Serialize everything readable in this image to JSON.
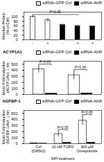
{
  "chart_data": [
    {
      "type": "bar",
      "ylabel": "Relative Protein\n(% of Ctrl)",
      "categories": [
        "-",
        "+",
        "-",
        "+",
        "+"
      ],
      "series": [
        {
          "name": "siRNA-GFP Ctrl",
          "color": "white",
          "values": [
            100,
            85,
            null,
            null,
            null
          ],
          "errors": [
            5,
            8,
            null,
            null,
            null
          ]
        },
        {
          "name": "siRNA-AhR",
          "color": "black",
          "values": [
            null,
            null,
            65,
            60,
            58
          ],
          "errors": [
            null,
            null,
            5,
            6,
            5
          ]
        }
      ],
      "ylim": [
        0,
        120
      ],
      "yticks": [
        0,
        20,
        40,
        60,
        80,
        100
      ],
      "annotations": [
        "P<0.05"
      ],
      "legend": "upper right"
    },
    {
      "type": "bar",
      "title": "ACYP1A1",
      "ylabel": "Mean Fold Induction\n(ACYP1/Act. 1 hr)",
      "categories": [
        null,
        null
      ],
      "series": [
        {
          "name": "siRNA-GFP Ctrl",
          "color": "white",
          "values": [
            420,
            320
          ],
          "errors": [
            60,
            70
          ]
        },
        {
          "name": "siRNA-AhR",
          "color": "black",
          "values": [
            15,
            20
          ],
          "errors": [
            3,
            5
          ]
        }
      ],
      "ylim": [
        0,
        550
      ],
      "yticks": [
        0,
        100,
        200,
        300,
        400,
        500
      ],
      "annotations": [
        "P<0.05",
        "P<0.05"
      ],
      "legend": "upper right"
    },
    {
      "type": "bar",
      "title": "hGFBP-1",
      "ylabel": "Mean Fold Induction\n(hGFBP-1/Act. 1 hr)",
      "xlabel": "SIH treatment",
      "categories": [
        "Ctrl (DMSO)",
        "10 nM TOPO",
        "300 µM Omeprazole"
      ],
      "series": [
        {
          "name": "siRNA-GFP Ctrl",
          "color": "white",
          "values": [
            5,
            160,
            380
          ],
          "errors": [
            1,
            50,
            80
          ]
        },
        {
          "name": "siRNA-AhR",
          "color": "black",
          "values": [
            3,
            15,
            18
          ],
          "errors": [
            1,
            5,
            6
          ]
        }
      ],
      "ylim": [
        0,
        550
      ],
      "yticks": [
        0,
        100,
        200,
        300,
        400,
        500
      ],
      "annotations": [
        "P<0.05",
        "P<0.05"
      ],
      "legend": "upper right"
    }
  ]
}
